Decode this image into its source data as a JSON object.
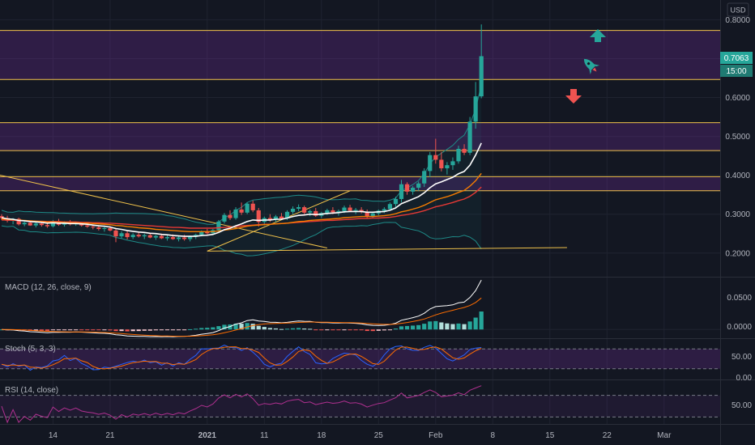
{
  "colors": {
    "background": "#131722",
    "grid": "#1f2330",
    "up": "#26a69a",
    "down": "#ef5350",
    "level_line": "#f0c24b",
    "zone_fill": "#7b2fa6",
    "ema_fast": "#ffffff",
    "ema_mid": "#f57c00",
    "ema_slow": "#e53935",
    "bb_line": "#1e8a87",
    "macd_line": "#ffffff",
    "signal_line": "#ff6d00",
    "stoch_k": "#2962ff",
    "stoch_d": "#ff6d00",
    "rsi_line": "#b03090",
    "trend_line": "#f0c24b",
    "arrow_up": "#26a69a",
    "arrow_down": "#ef5350"
  },
  "currency_button": "USD",
  "price_axis": {
    "ticks": [
      "0.8000",
      "0.7000",
      "0.6000",
      "0.5000",
      "0.4000",
      "0.3000",
      "0.2000"
    ],
    "last_price": "0.7063",
    "countdown": "15:00"
  },
  "macd": {
    "title": "MACD (12, 26, close, 9)",
    "ticks": [
      "0.0500",
      "0.0000"
    ]
  },
  "stoch": {
    "title": "Stoch (5, 3, 3)",
    "ticks": [
      "50.00",
      "0.00"
    ]
  },
  "rsi": {
    "title": "RSI (14, close)",
    "ticks": [
      "50.00"
    ]
  },
  "time_axis": {
    "labels": [
      "14",
      "21",
      "2021",
      "11",
      "18",
      "25",
      "Feb",
      "8",
      "15",
      "22",
      "Mar"
    ]
  },
  "chart_data": {
    "type": "candlestick",
    "y_range": [
      0.16,
      0.83
    ],
    "levels": [
      0.7725,
      0.6465,
      0.5354,
      0.4635,
      0.3965,
      0.3604
    ],
    "zones": [
      [
        0.6465,
        0.7725
      ],
      [
        0.4635,
        0.5354
      ],
      [
        0.3604,
        0.3965
      ]
    ],
    "candles": [
      [
        0.295,
        0.3,
        0.285,
        0.29
      ],
      [
        0.29,
        0.296,
        0.279,
        0.283
      ],
      [
        0.283,
        0.29,
        0.274,
        0.288
      ],
      [
        0.288,
        0.291,
        0.271,
        0.274
      ],
      [
        0.274,
        0.281,
        0.269,
        0.278
      ],
      [
        0.278,
        0.283,
        0.27,
        0.271
      ],
      [
        0.271,
        0.279,
        0.266,
        0.276
      ],
      [
        0.276,
        0.28,
        0.268,
        0.272
      ],
      [
        0.272,
        0.277,
        0.265,
        0.269
      ],
      [
        0.269,
        0.285,
        0.266,
        0.282
      ],
      [
        0.282,
        0.288,
        0.27,
        0.273
      ],
      [
        0.273,
        0.282,
        0.268,
        0.279
      ],
      [
        0.279,
        0.285,
        0.271,
        0.274
      ],
      [
        0.274,
        0.281,
        0.27,
        0.278
      ],
      [
        0.278,
        0.28,
        0.268,
        0.271
      ],
      [
        0.271,
        0.276,
        0.265,
        0.268
      ],
      [
        0.268,
        0.273,
        0.261,
        0.266
      ],
      [
        0.266,
        0.272,
        0.258,
        0.262
      ],
      [
        0.262,
        0.268,
        0.255,
        0.264
      ],
      [
        0.264,
        0.27,
        0.256,
        0.258
      ],
      [
        0.258,
        0.263,
        0.228,
        0.243
      ],
      [
        0.243,
        0.256,
        0.238,
        0.251
      ],
      [
        0.251,
        0.257,
        0.235,
        0.241
      ],
      [
        0.241,
        0.251,
        0.236,
        0.247
      ],
      [
        0.247,
        0.254,
        0.24,
        0.243
      ],
      [
        0.243,
        0.25,
        0.236,
        0.246
      ],
      [
        0.246,
        0.252,
        0.238,
        0.24
      ],
      [
        0.24,
        0.247,
        0.234,
        0.244
      ],
      [
        0.244,
        0.25,
        0.236,
        0.238
      ],
      [
        0.238,
        0.246,
        0.232,
        0.241
      ],
      [
        0.241,
        0.248,
        0.234,
        0.236
      ],
      [
        0.236,
        0.244,
        0.23,
        0.24
      ],
      [
        0.24,
        0.247,
        0.232,
        0.236
      ],
      [
        0.236,
        0.245,
        0.23,
        0.242
      ],
      [
        0.242,
        0.25,
        0.236,
        0.247
      ],
      [
        0.247,
        0.258,
        0.243,
        0.255
      ],
      [
        0.255,
        0.262,
        0.248,
        0.251
      ],
      [
        0.251,
        0.262,
        0.246,
        0.259
      ],
      [
        0.259,
        0.285,
        0.255,
        0.281
      ],
      [
        0.281,
        0.303,
        0.276,
        0.298
      ],
      [
        0.298,
        0.31,
        0.285,
        0.29
      ],
      [
        0.29,
        0.318,
        0.286,
        0.312
      ],
      [
        0.312,
        0.33,
        0.298,
        0.304
      ],
      [
        0.304,
        0.33,
        0.3,
        0.327
      ],
      [
        0.327,
        0.335,
        0.305,
        0.31
      ],
      [
        0.31,
        0.316,
        0.268,
        0.28
      ],
      [
        0.28,
        0.294,
        0.271,
        0.29
      ],
      [
        0.29,
        0.3,
        0.28,
        0.286
      ],
      [
        0.286,
        0.298,
        0.28,
        0.294
      ],
      [
        0.294,
        0.303,
        0.286,
        0.289
      ],
      [
        0.289,
        0.31,
        0.285,
        0.306
      ],
      [
        0.306,
        0.32,
        0.3,
        0.314
      ],
      [
        0.314,
        0.325,
        0.308,
        0.318
      ],
      [
        0.318,
        0.322,
        0.3,
        0.304
      ],
      [
        0.304,
        0.312,
        0.295,
        0.308
      ],
      [
        0.308,
        0.316,
        0.293,
        0.296
      ],
      [
        0.296,
        0.306,
        0.29,
        0.303
      ],
      [
        0.303,
        0.314,
        0.298,
        0.31
      ],
      [
        0.31,
        0.318,
        0.3,
        0.305
      ],
      [
        0.305,
        0.312,
        0.296,
        0.308
      ],
      [
        0.308,
        0.322,
        0.303,
        0.317
      ],
      [
        0.317,
        0.324,
        0.306,
        0.309
      ],
      [
        0.309,
        0.316,
        0.3,
        0.311
      ],
      [
        0.311,
        0.318,
        0.302,
        0.306
      ],
      [
        0.306,
        0.312,
        0.29,
        0.294
      ],
      [
        0.294,
        0.306,
        0.29,
        0.302
      ],
      [
        0.302,
        0.312,
        0.297,
        0.309
      ],
      [
        0.309,
        0.318,
        0.303,
        0.313
      ],
      [
        0.313,
        0.33,
        0.309,
        0.326
      ],
      [
        0.326,
        0.345,
        0.318,
        0.339
      ],
      [
        0.339,
        0.388,
        0.33,
        0.377
      ],
      [
        0.377,
        0.382,
        0.35,
        0.358
      ],
      [
        0.358,
        0.372,
        0.35,
        0.368
      ],
      [
        0.368,
        0.384,
        0.36,
        0.379
      ],
      [
        0.379,
        0.418,
        0.37,
        0.411
      ],
      [
        0.411,
        0.46,
        0.395,
        0.452
      ],
      [
        0.452,
        0.494,
        0.43,
        0.44
      ],
      [
        0.44,
        0.46,
        0.41,
        0.418
      ],
      [
        0.418,
        0.434,
        0.402,
        0.426
      ],
      [
        0.426,
        0.446,
        0.414,
        0.436
      ],
      [
        0.436,
        0.476,
        0.43,
        0.468
      ],
      [
        0.468,
        0.48,
        0.452,
        0.458
      ],
      [
        0.458,
        0.55,
        0.452,
        0.538
      ],
      [
        0.538,
        0.64,
        0.52,
        0.603
      ],
      [
        0.603,
        0.788,
        0.598,
        0.7063
      ]
    ],
    "ema_fast": [
      0.291,
      0.288,
      0.287,
      0.284,
      0.283,
      0.281,
      0.28,
      0.279,
      0.277,
      0.278,
      0.277,
      0.277,
      0.276,
      0.276,
      0.275,
      0.274,
      0.272,
      0.27,
      0.269,
      0.267,
      0.263,
      0.261,
      0.258,
      0.256,
      0.254,
      0.253,
      0.251,
      0.25,
      0.248,
      0.247,
      0.245,
      0.244,
      0.243,
      0.243,
      0.243,
      0.245,
      0.246,
      0.248,
      0.253,
      0.26,
      0.264,
      0.27,
      0.275,
      0.281,
      0.285,
      0.284,
      0.285,
      0.285,
      0.287,
      0.287,
      0.29,
      0.294,
      0.297,
      0.298,
      0.3,
      0.299,
      0.3,
      0.302,
      0.303,
      0.304,
      0.306,
      0.307,
      0.307,
      0.307,
      0.305,
      0.305,
      0.306,
      0.307,
      0.31,
      0.316,
      0.327,
      0.333,
      0.339,
      0.345,
      0.355,
      0.368,
      0.378,
      0.383,
      0.389,
      0.395,
      0.404,
      0.41,
      0.426,
      0.452,
      0.483
    ],
    "ema_mid": [
      0.288,
      0.287,
      0.286,
      0.285,
      0.284,
      0.283,
      0.282,
      0.281,
      0.28,
      0.28,
      0.279,
      0.279,
      0.278,
      0.278,
      0.277,
      0.277,
      0.276,
      0.275,
      0.274,
      0.273,
      0.271,
      0.27,
      0.268,
      0.267,
      0.265,
      0.264,
      0.263,
      0.261,
      0.26,
      0.259,
      0.258,
      0.257,
      0.256,
      0.255,
      0.255,
      0.255,
      0.255,
      0.255,
      0.257,
      0.259,
      0.261,
      0.263,
      0.266,
      0.269,
      0.271,
      0.272,
      0.273,
      0.274,
      0.275,
      0.276,
      0.277,
      0.279,
      0.281,
      0.282,
      0.284,
      0.285,
      0.286,
      0.287,
      0.288,
      0.289,
      0.291,
      0.292,
      0.293,
      0.294,
      0.294,
      0.294,
      0.295,
      0.296,
      0.298,
      0.301,
      0.306,
      0.309,
      0.313,
      0.317,
      0.323,
      0.33,
      0.337,
      0.341,
      0.345,
      0.35,
      0.356,
      0.361,
      0.372,
      0.386,
      0.405
    ],
    "ema_slow": [
      0.285,
      0.285,
      0.284,
      0.284,
      0.283,
      0.283,
      0.282,
      0.282,
      0.281,
      0.281,
      0.281,
      0.28,
      0.28,
      0.28,
      0.279,
      0.279,
      0.278,
      0.278,
      0.277,
      0.277,
      0.276,
      0.275,
      0.274,
      0.273,
      0.272,
      0.271,
      0.27,
      0.269,
      0.268,
      0.267,
      0.266,
      0.266,
      0.265,
      0.264,
      0.264,
      0.264,
      0.264,
      0.264,
      0.265,
      0.266,
      0.267,
      0.268,
      0.27,
      0.271,
      0.272,
      0.273,
      0.274,
      0.274,
      0.275,
      0.276,
      0.277,
      0.278,
      0.279,
      0.28,
      0.281,
      0.282,
      0.283,
      0.284,
      0.284,
      0.285,
      0.286,
      0.287,
      0.288,
      0.289,
      0.289,
      0.29,
      0.29,
      0.291,
      0.292,
      0.294,
      0.297,
      0.299,
      0.302,
      0.305,
      0.309,
      0.314,
      0.319,
      0.322,
      0.326,
      0.33,
      0.335,
      0.339,
      0.346,
      0.356,
      0.37
    ],
    "trend_lines": [
      {
        "from": [
          -10,
          0.432
        ],
        "to": [
          57,
          0.213
        ]
      },
      {
        "from": [
          36,
          0.205
        ],
        "to": [
          61,
          0.36
        ]
      },
      {
        "from": [
          36,
          0.205
        ],
        "to": [
          99,
          0.214
        ]
      }
    ],
    "macd_range": [
      -0.008,
      0.072
    ],
    "stoch_range": [
      -5,
      105
    ],
    "rsi_range": [
      20,
      95
    ]
  }
}
